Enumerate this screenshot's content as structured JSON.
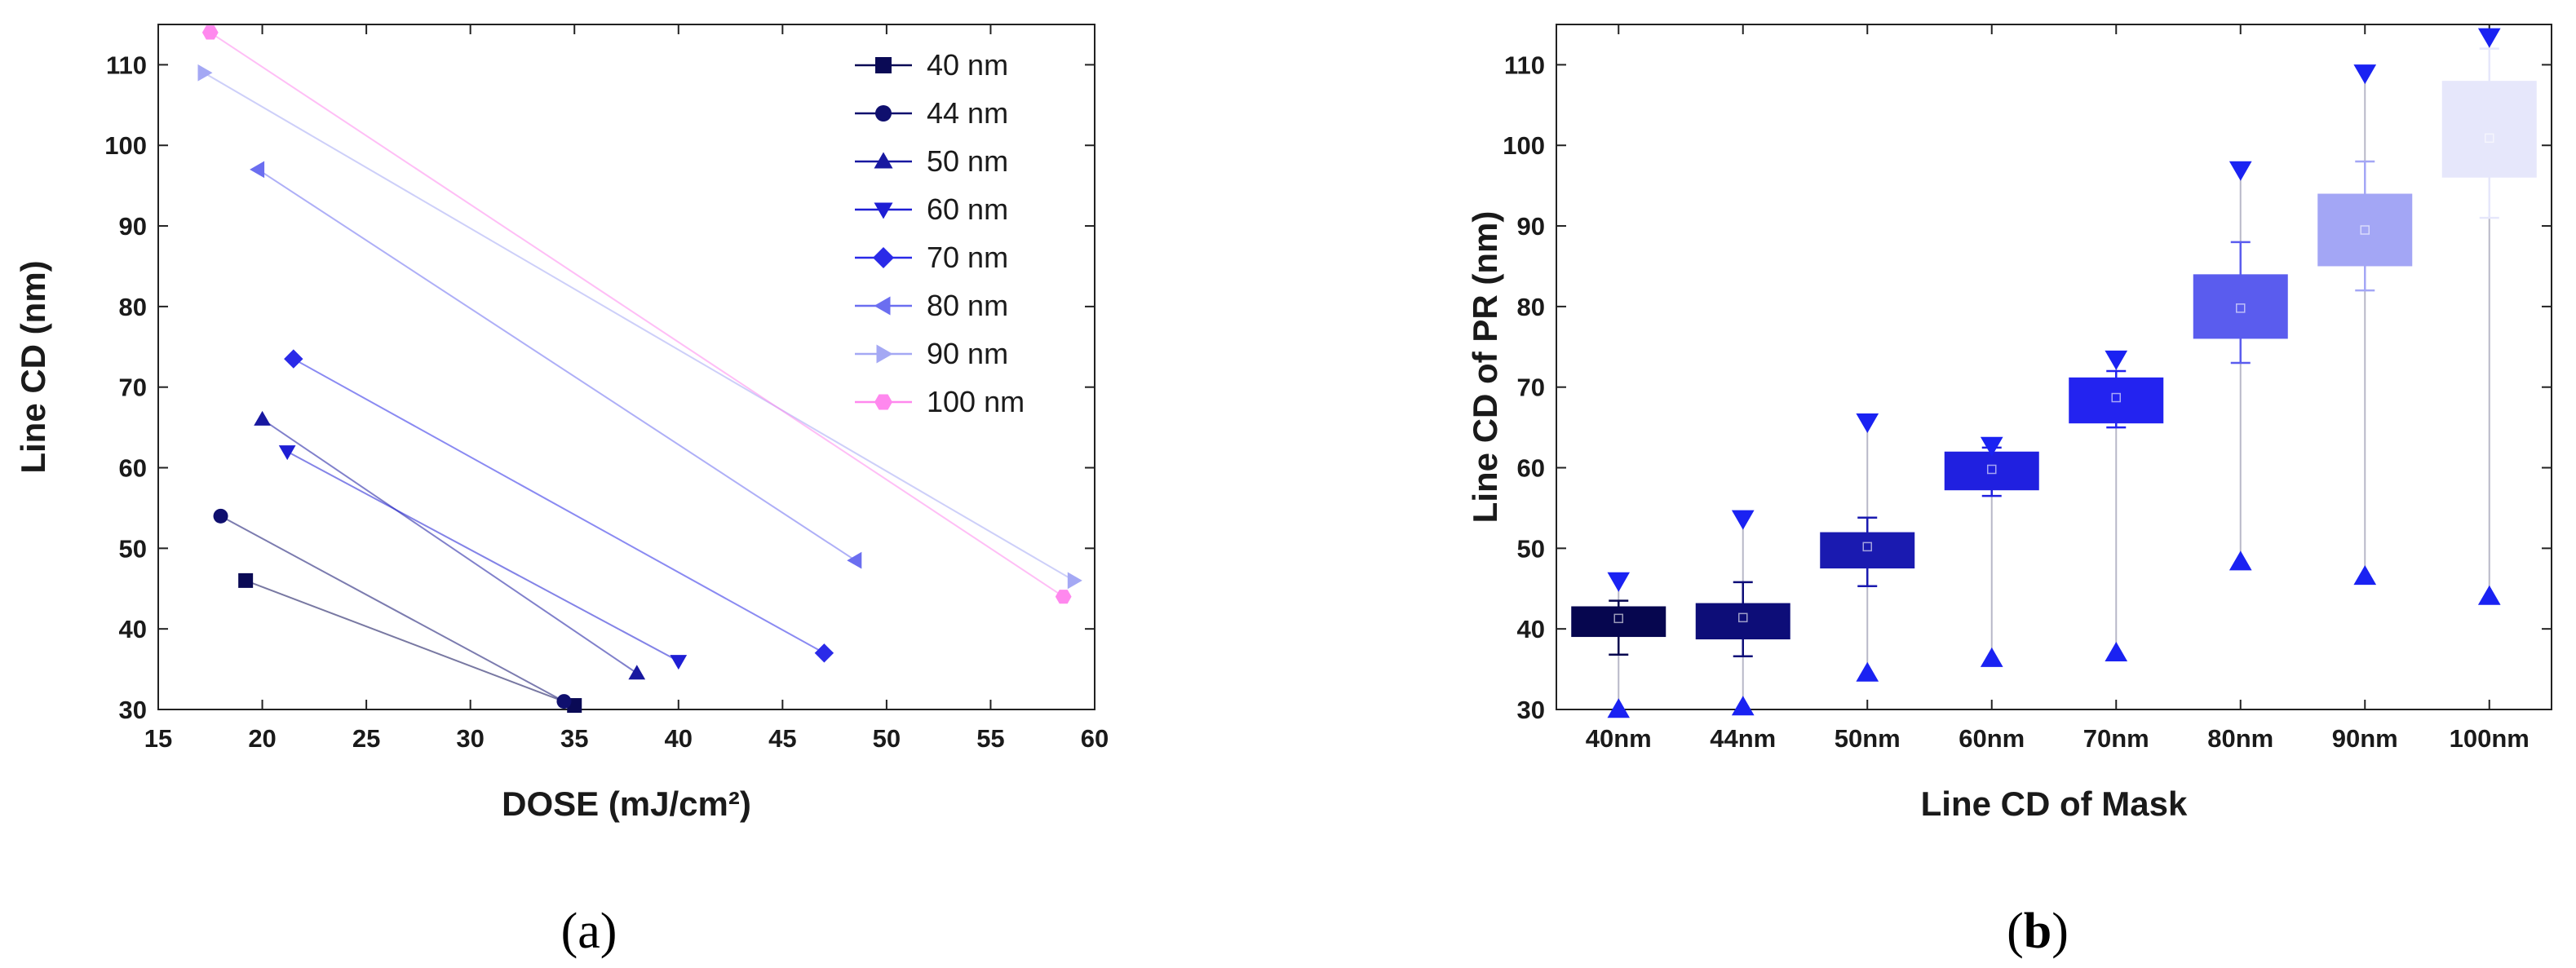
{
  "chart_data": [
    {
      "type": "scatter",
      "panel_label": "a",
      "title": "",
      "xlabel": "DOSE (mJ/cm²)",
      "ylabel": "Line CD (nm)",
      "xlim": [
        15,
        60
      ],
      "ylim": [
        30,
        115
      ],
      "xticks": [
        "15",
        "20",
        "25",
        "30",
        "35",
        "40",
        "45",
        "50",
        "55",
        "60"
      ],
      "yticks": [
        "30",
        "40",
        "50",
        "60",
        "70",
        "80",
        "90",
        "100",
        "110"
      ],
      "legend_position": "top-right",
      "series": [
        {
          "name": "40 nm",
          "marker": "square",
          "color": "#0a0a55",
          "x": [
            19.2,
            35.0
          ],
          "y": [
            46.0,
            30.5
          ]
        },
        {
          "name": "44 nm",
          "marker": "circle",
          "color": "#0f0f6e",
          "x": [
            18.0,
            34.5
          ],
          "y": [
            54.0,
            31.0
          ]
        },
        {
          "name": "50 nm",
          "marker": "triangle-up",
          "color": "#1818a0",
          "x": [
            20.0,
            38.0
          ],
          "y": [
            66.0,
            34.5
          ]
        },
        {
          "name": "60 nm",
          "marker": "triangle-down",
          "color": "#1e1ed4",
          "x": [
            21.2,
            40.0
          ],
          "y": [
            62.0,
            36.0
          ]
        },
        {
          "name": "70 nm",
          "marker": "diamond",
          "color": "#2a2ae8",
          "x": [
            21.5,
            47.0
          ],
          "y": [
            73.5,
            37.0
          ]
        },
        {
          "name": "80 nm",
          "marker": "triangle-left",
          "color": "#6b6ef0",
          "x": [
            19.8,
            48.5
          ],
          "y": [
            97.0,
            48.5
          ]
        },
        {
          "name": "90 nm",
          "marker": "triangle-right",
          "color": "#a4a8f4",
          "x": [
            17.2,
            59.0
          ],
          "y": [
            109.0,
            46.0
          ]
        },
        {
          "name": "100 nm",
          "marker": "hexagon",
          "color": "#ff88ee",
          "x": [
            17.5,
            58.5
          ],
          "y": [
            114.0,
            44.0
          ]
        }
      ]
    },
    {
      "type": "box",
      "panel_label": "b",
      "title": "",
      "xlabel": "Line CD of Mask",
      "ylabel": "Line CD of PR (nm)",
      "ylim": [
        30,
        115
      ],
      "yticks": [
        "30",
        "40",
        "50",
        "60",
        "70",
        "80",
        "90",
        "100",
        "110"
      ],
      "categories": [
        "40nm",
        "44nm",
        "50nm",
        "60nm",
        "70nm",
        "80nm",
        "90nm",
        "100nm"
      ],
      "colors": [
        "#06064f",
        "#0d0d78",
        "#1a1ab0",
        "#2020e0",
        "#2323f0",
        "#5a5cee",
        "#a3a6f5",
        "#e6e7fb"
      ],
      "q1": [
        39.0,
        38.7,
        47.5,
        57.2,
        65.5,
        76.0,
        85.0,
        96.0
      ],
      "q3": [
        42.8,
        43.2,
        52.0,
        62.0,
        71.2,
        84.0,
        94.0,
        108.0
      ],
      "whisker_low": [
        36.8,
        36.6,
        45.3,
        56.5,
        65.0,
        73.0,
        82.0,
        91.0
      ],
      "whisker_high": [
        43.5,
        45.8,
        53.8,
        62.5,
        72.0,
        88.0,
        98.0,
        112.0
      ],
      "min": [
        30.0,
        30.3,
        34.5,
        36.3,
        37.0,
        48.3,
        46.5,
        44.0
      ],
      "max": [
        46.0,
        53.7,
        65.7,
        62.8,
        73.5,
        97.0,
        109.0,
        113.5
      ],
      "mean": [
        41.3,
        41.4,
        50.2,
        59.8,
        68.7,
        79.8,
        89.5,
        100.9
      ]
    }
  ],
  "captions": {
    "a": {
      "open": "(",
      "letter": "a",
      "close": ")"
    },
    "b": {
      "open": "(",
      "letter": "b",
      "close": ")"
    }
  }
}
